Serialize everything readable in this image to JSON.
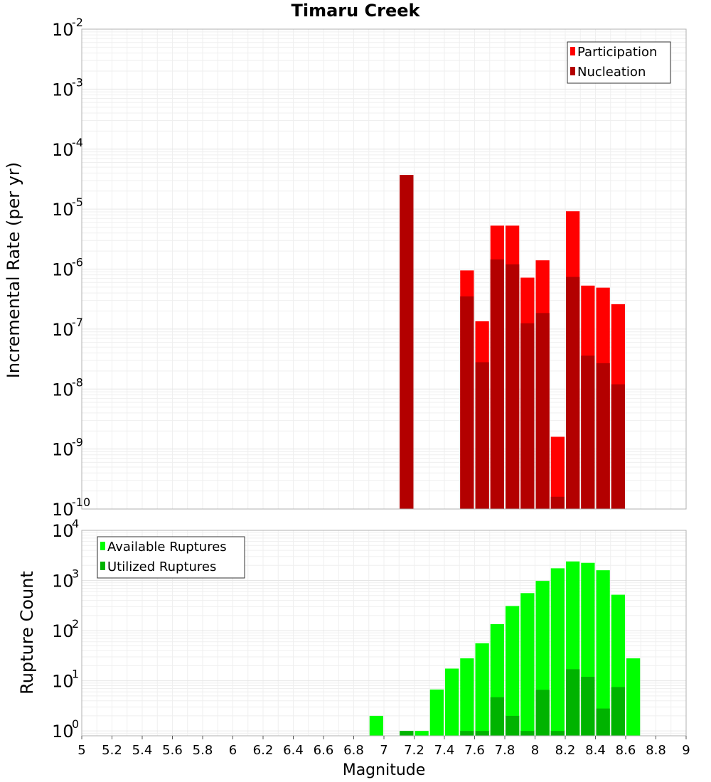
{
  "chart_data": [
    {
      "type": "bar",
      "title": "Timaru Creek",
      "ylabel": "Incremental Rate (per yr)",
      "xlabel": "",
      "yscale": "log",
      "ylim": [
        1e-10,
        0.01
      ],
      "xlim": [
        5,
        9
      ],
      "bar_width": 0.1,
      "y_tick_exponents": [
        "-10",
        "-9",
        "-8",
        "-7",
        "-6",
        "-5",
        "-4",
        "-3",
        "-2"
      ],
      "y_tick_base": "10",
      "legend_position": "top-right",
      "series": [
        {
          "name": "Participation",
          "color": "#ff0000",
          "points": [
            {
              "x": 7.15,
              "y": 3.7e-05
            },
            {
              "x": 7.55,
              "y": 9.5e-07
            },
            {
              "x": 7.65,
              "y": 1.35e-07
            },
            {
              "x": 7.75,
              "y": 5.3e-06
            },
            {
              "x": 7.85,
              "y": 5.3e-06
            },
            {
              "x": 7.95,
              "y": 7.2e-07
            },
            {
              "x": 8.05,
              "y": 1.4e-06
            },
            {
              "x": 8.15,
              "y": 1.6e-09
            },
            {
              "x": 8.25,
              "y": 9.2e-06
            },
            {
              "x": 8.35,
              "y": 5.3e-07
            },
            {
              "x": 8.45,
              "y": 4.9e-07
            },
            {
              "x": 8.55,
              "y": 2.6e-07
            }
          ]
        },
        {
          "name": "Nucleation",
          "color": "#b30000",
          "points": [
            {
              "x": 7.15,
              "y": 3.7e-05
            },
            {
              "x": 7.55,
              "y": 3.5e-07
            },
            {
              "x": 7.65,
              "y": 2.8e-08
            },
            {
              "x": 7.75,
              "y": 1.45e-06
            },
            {
              "x": 7.85,
              "y": 1.2e-06
            },
            {
              "x": 7.95,
              "y": 1.25e-07
            },
            {
              "x": 8.05,
              "y": 1.85e-07
            },
            {
              "x": 8.15,
              "y": 1.6e-10
            },
            {
              "x": 8.25,
              "y": 7.4e-07
            },
            {
              "x": 8.35,
              "y": 3.6e-08
            },
            {
              "x": 8.45,
              "y": 2.7e-08
            },
            {
              "x": 8.55,
              "y": 1.2e-08
            }
          ]
        }
      ]
    },
    {
      "type": "bar",
      "title": "",
      "ylabel": "Rupture Count",
      "xlabel": "Magnitude",
      "yscale": "log",
      "ylim": [
        0.8,
        10000
      ],
      "xlim": [
        5,
        9
      ],
      "bar_width": 0.1,
      "x_ticks": [
        "5",
        "5.2",
        "5.4",
        "5.6",
        "5.8",
        "6",
        "6.2",
        "6.4",
        "6.6",
        "6.8",
        "7",
        "7.2",
        "7.4",
        "7.6",
        "7.8",
        "8",
        "8.2",
        "8.4",
        "8.6",
        "8.8",
        "9"
      ],
      "y_tick_exponents": [
        "0",
        "1",
        "2",
        "3",
        "4"
      ],
      "y_tick_base": "10",
      "legend_position": "top-left",
      "series": [
        {
          "name": "Available Ruptures",
          "color": "#00ff00",
          "points": [
            {
              "x": 6.95,
              "y": 2
            },
            {
              "x": 7.15,
              "y": 1
            },
            {
              "x": 7.25,
              "y": 1
            },
            {
              "x": 7.35,
              "y": 6.7
            },
            {
              "x": 7.45,
              "y": 17.5
            },
            {
              "x": 7.55,
              "y": 28
            },
            {
              "x": 7.65,
              "y": 56
            },
            {
              "x": 7.75,
              "y": 135
            },
            {
              "x": 7.85,
              "y": 310
            },
            {
              "x": 7.95,
              "y": 560
            },
            {
              "x": 8.05,
              "y": 980
            },
            {
              "x": 8.15,
              "y": 1750
            },
            {
              "x": 8.25,
              "y": 2400
            },
            {
              "x": 8.35,
              "y": 2250
            },
            {
              "x": 8.45,
              "y": 1600
            },
            {
              "x": 8.55,
              "y": 520
            },
            {
              "x": 8.65,
              "y": 28
            }
          ]
        },
        {
          "name": "Utilized Ruptures",
          "color": "#00b300",
          "points": [
            {
              "x": 7.15,
              "y": 1
            },
            {
              "x": 7.55,
              "y": 1
            },
            {
              "x": 7.65,
              "y": 1
            },
            {
              "x": 7.75,
              "y": 4.7
            },
            {
              "x": 7.85,
              "y": 2
            },
            {
              "x": 7.95,
              "y": 1
            },
            {
              "x": 8.05,
              "y": 6.6
            },
            {
              "x": 8.15,
              "y": 1
            },
            {
              "x": 8.25,
              "y": 17
            },
            {
              "x": 8.35,
              "y": 12
            },
            {
              "x": 8.45,
              "y": 2.8
            },
            {
              "x": 8.55,
              "y": 7.5
            }
          ]
        }
      ]
    }
  ]
}
